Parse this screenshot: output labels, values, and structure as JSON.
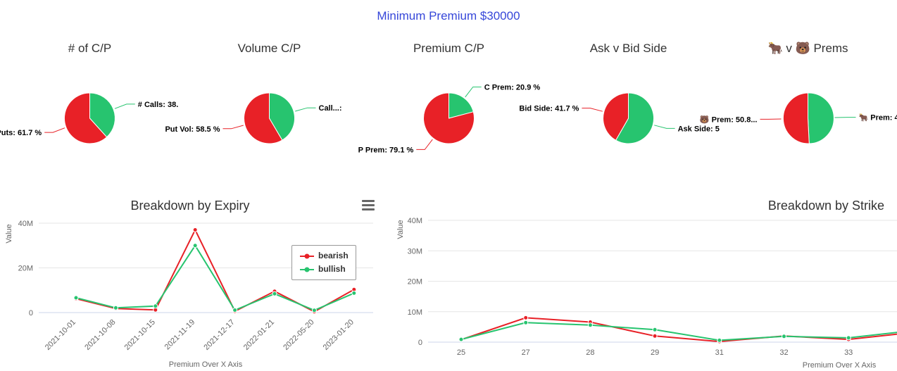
{
  "page_title": "Minimum Premium $30000",
  "colors": {
    "bearish": "#e82127",
    "bullish": "#27c46f",
    "title_blue": "#3647d9",
    "chart_title": "#333333",
    "axis_text": "#666666",
    "grid": "#e6e6e6",
    "axis_line": "#ccd6eb"
  },
  "chart_data": [
    {
      "type": "pie",
      "title": "# of C/P",
      "slices": [
        {
          "name": "calls",
          "display_label": "# Calls: 38.",
          "value": 38.3,
          "color": "bullish"
        },
        {
          "name": "puts",
          "display_label": "# Puts: 61.7 %",
          "value": 61.7,
          "color": "bearish"
        }
      ]
    },
    {
      "type": "pie",
      "title": "Volume C/P",
      "slices": [
        {
          "name": "call-vol",
          "display_label": "Call...:",
          "value": 41.5,
          "color": "bullish"
        },
        {
          "name": "put-vol",
          "display_label": "Put Vol: 58.5 %",
          "value": 58.5,
          "color": "bearish"
        }
      ]
    },
    {
      "type": "pie",
      "title": "Premium C/P",
      "slices": [
        {
          "name": "c-prem",
          "display_label": "C Prem: 20.9 %",
          "value": 20.9,
          "color": "bullish"
        },
        {
          "name": "p-prem",
          "display_label": "P Prem: 79.1 %",
          "value": 79.1,
          "color": "bearish"
        }
      ]
    },
    {
      "type": "pie",
      "title": "Ask v Bid Side",
      "slices": [
        {
          "name": "ask-side",
          "display_label": "Ask Side: 5",
          "value": 58.3,
          "color": "bullish"
        },
        {
          "name": "bid-side",
          "display_label": "Bid Side: 41.7 %",
          "value": 41.7,
          "color": "bearish"
        }
      ]
    },
    {
      "type": "pie",
      "title": "🐂 v 🐻 Prems",
      "slices": [
        {
          "name": "bull-prem",
          "display_label": "🐂 Prem: 4",
          "value": 49.2,
          "color": "bullish"
        },
        {
          "name": "bear-prem",
          "display_label": "🐻 Prem: 50.8...",
          "value": 50.8,
          "color": "bearish"
        }
      ]
    },
    {
      "type": "line",
      "title": "Breakdown by Expiry",
      "xlabel": "Premium Over X Axis",
      "ylabel": "Value",
      "unit": "M",
      "ylim": [
        0,
        42
      ],
      "grid": true,
      "legend": true,
      "legend_position": "right-center-inside",
      "categories": [
        "2021-10-01",
        "2021-10-08",
        "2021-10-15",
        "2021-11-19",
        "2021-12-17",
        "2022-01-21",
        "2022-05-20",
        "2023-01-20"
      ],
      "yticks": [
        {
          "value": 0,
          "label": "0"
        },
        {
          "value": 20,
          "label": "20M"
        },
        {
          "value": 40,
          "label": "40M"
        }
      ],
      "series": [
        {
          "name": "bearish",
          "color": "bearish",
          "values": [
            6.2,
            1.8,
            1.2,
            37.0,
            0.6,
            9.5,
            0.4,
            10.3
          ]
        },
        {
          "name": "bullish",
          "color": "bullish",
          "values": [
            6.6,
            2.1,
            2.9,
            30.0,
            1.1,
            8.4,
            1.0,
            8.7
          ]
        }
      ]
    },
    {
      "type": "line",
      "title": "Breakdown by Strike",
      "xlabel": "Premium Over X Axis",
      "ylabel": "Value",
      "unit": "M",
      "ylim": [
        0,
        45
      ],
      "grid": true,
      "legend": false,
      "categories": [
        "25",
        "27",
        "28",
        "29",
        "31",
        "32",
        "33",
        ""
      ],
      "yticks": [
        {
          "value": 0,
          "label": "0"
        },
        {
          "value": 10,
          "label": "10M"
        },
        {
          "value": 20,
          "label": "20M"
        },
        {
          "value": 30,
          "label": "30M"
        },
        {
          "value": 40,
          "label": "40M"
        }
      ],
      "series": [
        {
          "name": "bearish",
          "color": "bearish",
          "values": [
            0.8,
            8.0,
            6.6,
            2.0,
            0.2,
            2.0,
            0.9,
            3.2
          ]
        },
        {
          "name": "bullish",
          "color": "bullish",
          "values": [
            0.9,
            6.4,
            5.6,
            4.1,
            0.6,
            1.9,
            1.4,
            3.8
          ]
        }
      ]
    }
  ]
}
